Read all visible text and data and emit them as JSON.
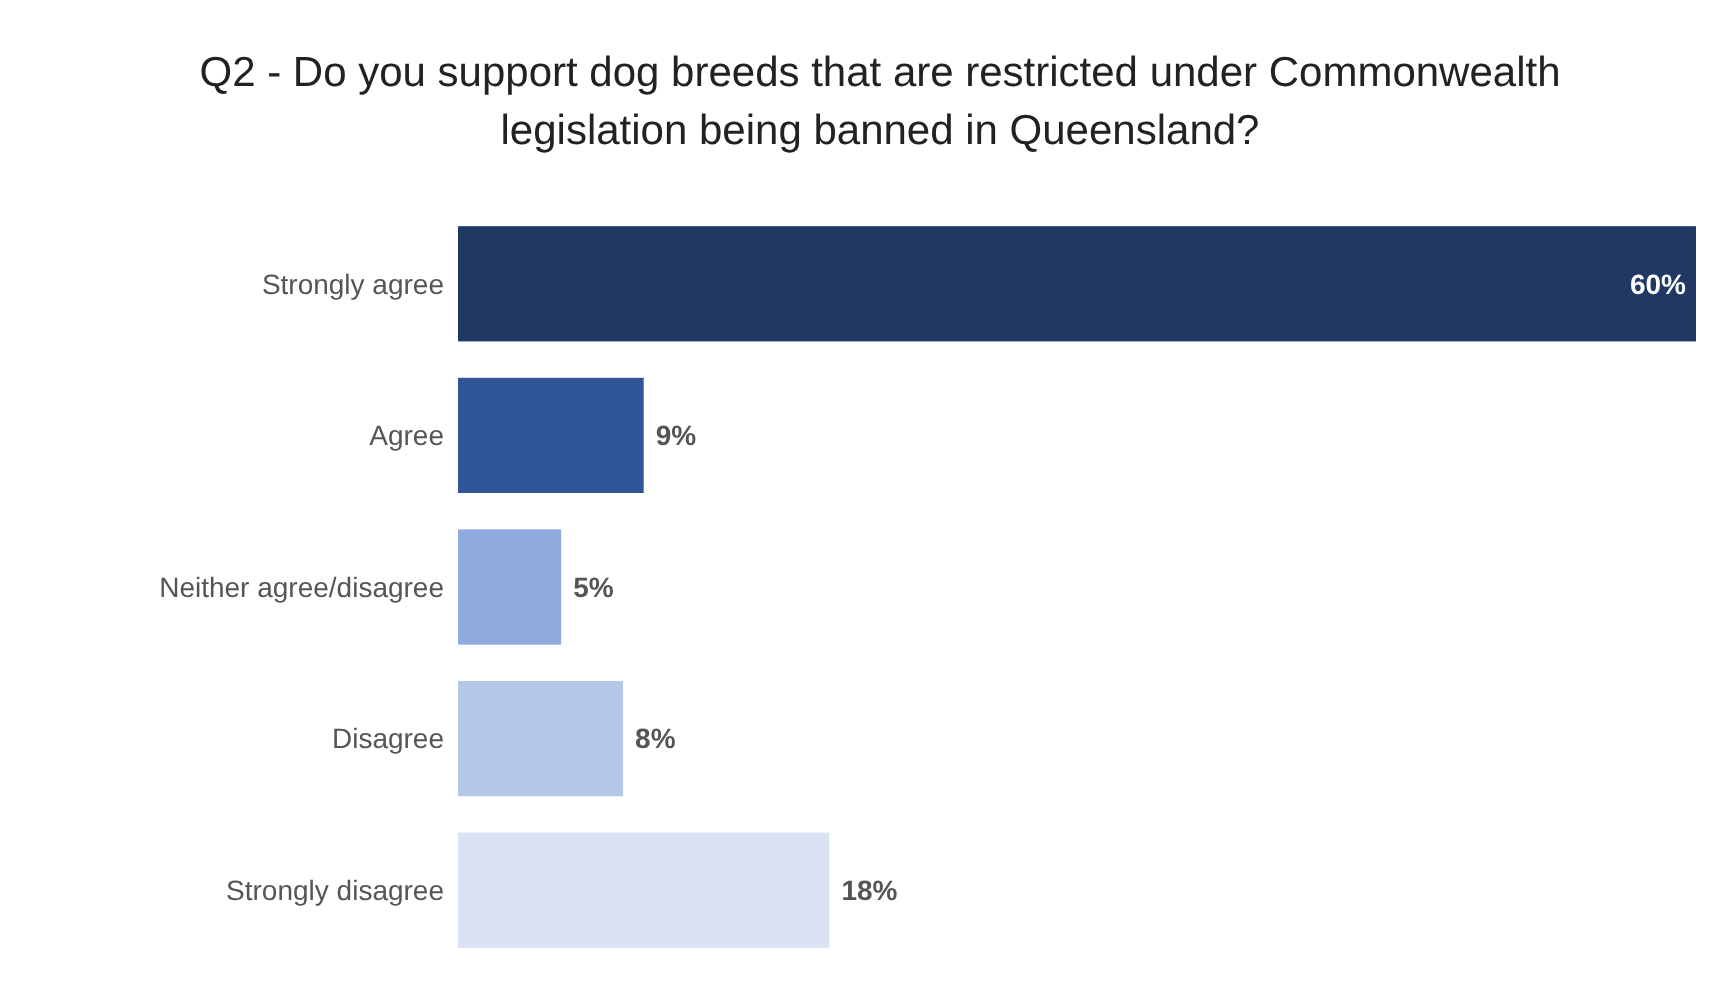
{
  "chart_data": {
    "type": "bar",
    "orientation": "horizontal",
    "title": "Q2 - Do you support dog breeds that are restricted under Commonwealth legislation being banned in Queensland?",
    "categories": [
      "Strongly agree",
      "Agree",
      "Neither agree/disagree",
      "Disagree",
      "Strongly disagree"
    ],
    "values": [
      60,
      9,
      5,
      8,
      18
    ],
    "colors": [
      "#1f3864",
      "#2f5597",
      "#8faadc",
      "#b4c7e7",
      "#dae3f3"
    ],
    "value_labels": [
      "60%",
      "9%",
      "5%",
      "8%",
      "18%"
    ]
  }
}
